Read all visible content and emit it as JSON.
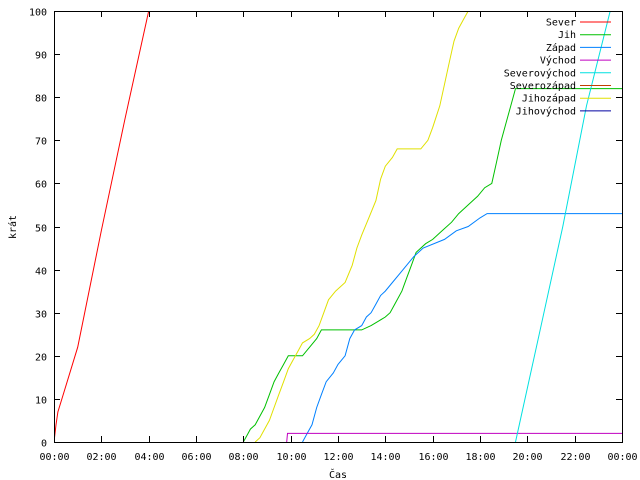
{
  "chart_data": {
    "type": "line",
    "xlabel": "Čas",
    "ylabel": "krát",
    "xlim": [
      "00:00",
      "24:00"
    ],
    "ylim": [
      0,
      100
    ],
    "x_tick_labels": [
      "00:00",
      "02:00",
      "04:00",
      "06:00",
      "08:00",
      "10:00",
      "12:00",
      "14:00",
      "16:00",
      "18:00",
      "20:00",
      "22:00",
      "00:00"
    ],
    "y_tick_labels": [
      "0",
      "10",
      "20",
      "30",
      "40",
      "50",
      "60",
      "70",
      "80",
      "90",
      "100"
    ],
    "legend_position": "top-right",
    "grid": false,
    "series": [
      {
        "name": "Sever",
        "color": "#ff0000",
        "points": [
          [
            "00:00",
            0
          ],
          [
            "00:05",
            4
          ],
          [
            "00:10",
            7
          ],
          [
            "00:20",
            10
          ],
          [
            "01:00",
            22
          ],
          [
            "02:00",
            49
          ],
          [
            "03:00",
            75
          ],
          [
            "04:00",
            100
          ]
        ]
      },
      {
        "name": "Jih",
        "color": "#00c000",
        "points": [
          [
            "08:00",
            0
          ],
          [
            "08:06",
            1
          ],
          [
            "08:12",
            2
          ],
          [
            "08:18",
            3
          ],
          [
            "08:30",
            4
          ],
          [
            "08:42",
            6
          ],
          [
            "08:54",
            8
          ],
          [
            "09:06",
            11
          ],
          [
            "09:18",
            14
          ],
          [
            "09:30",
            16
          ],
          [
            "09:42",
            18
          ],
          [
            "09:54",
            20
          ],
          [
            "10:30",
            20
          ],
          [
            "10:48",
            22
          ],
          [
            "11:06",
            24
          ],
          [
            "11:18",
            26
          ],
          [
            "13:00",
            26
          ],
          [
            "13:24",
            27
          ],
          [
            "13:42",
            28
          ],
          [
            "14:00",
            29
          ],
          [
            "14:12",
            30
          ],
          [
            "14:24",
            32
          ],
          [
            "14:42",
            35
          ],
          [
            "14:54",
            38
          ],
          [
            "15:06",
            41
          ],
          [
            "15:18",
            44
          ],
          [
            "15:42",
            46
          ],
          [
            "16:00",
            47
          ],
          [
            "16:24",
            49
          ],
          [
            "16:48",
            51
          ],
          [
            "17:06",
            53
          ],
          [
            "17:30",
            55
          ],
          [
            "17:54",
            57
          ],
          [
            "18:12",
            59
          ],
          [
            "18:30",
            60
          ],
          [
            "18:42",
            65
          ],
          [
            "18:54",
            70
          ],
          [
            "19:06",
            74
          ],
          [
            "19:18",
            78
          ],
          [
            "19:30",
            82
          ],
          [
            "24:00",
            82
          ]
        ]
      },
      {
        "name": "Západ",
        "color": "#0080ff",
        "points": [
          [
            "10:30",
            0
          ],
          [
            "10:42",
            2
          ],
          [
            "10:54",
            4
          ],
          [
            "11:06",
            8
          ],
          [
            "11:18",
            11
          ],
          [
            "11:30",
            14
          ],
          [
            "11:48",
            16
          ],
          [
            "12:00",
            18
          ],
          [
            "12:18",
            20
          ],
          [
            "12:30",
            24
          ],
          [
            "12:42",
            26
          ],
          [
            "13:00",
            27
          ],
          [
            "13:12",
            29
          ],
          [
            "13:24",
            30
          ],
          [
            "13:36",
            32
          ],
          [
            "13:48",
            34
          ],
          [
            "14:00",
            35
          ],
          [
            "14:18",
            37
          ],
          [
            "14:36",
            39
          ],
          [
            "14:54",
            41
          ],
          [
            "15:12",
            43
          ],
          [
            "15:36",
            45
          ],
          [
            "16:30",
            47
          ],
          [
            "17:00",
            49
          ],
          [
            "17:30",
            50
          ],
          [
            "18:00",
            52
          ],
          [
            "18:18",
            53
          ],
          [
            "24:00",
            53
          ]
        ]
      },
      {
        "name": "Východ",
        "color": "#c000c0",
        "points": [
          [
            "09:50",
            0
          ],
          [
            "09:52",
            2
          ],
          [
            "24:00",
            2
          ]
        ]
      },
      {
        "name": "Severovýchod",
        "color": "#00e0e0",
        "points": [
          [
            "19:30",
            0
          ],
          [
            "20:30",
            25
          ],
          [
            "21:30",
            50
          ],
          [
            "22:30",
            78
          ],
          [
            "23:30",
            100
          ]
        ]
      },
      {
        "name": "Severozápad",
        "color": "#c04000",
        "points": []
      },
      {
        "name": "Jihozápad",
        "color": "#e0e000",
        "points": [
          [
            "08:30",
            0
          ],
          [
            "08:42",
            1
          ],
          [
            "08:54",
            3
          ],
          [
            "09:06",
            5
          ],
          [
            "09:18",
            8
          ],
          [
            "09:30",
            11
          ],
          [
            "09:42",
            14
          ],
          [
            "09:54",
            17
          ],
          [
            "10:06",
            19
          ],
          [
            "10:18",
            21
          ],
          [
            "10:30",
            23
          ],
          [
            "10:48",
            24
          ],
          [
            "11:00",
            25
          ],
          [
            "11:12",
            27
          ],
          [
            "11:24",
            30
          ],
          [
            "11:36",
            33
          ],
          [
            "11:54",
            35
          ],
          [
            "12:18",
            37
          ],
          [
            "12:36",
            41
          ],
          [
            "12:48",
            45
          ],
          [
            "13:00",
            48
          ],
          [
            "13:18",
            52
          ],
          [
            "13:36",
            56
          ],
          [
            "13:48",
            61
          ],
          [
            "14:00",
            64
          ],
          [
            "14:18",
            66
          ],
          [
            "14:30",
            68
          ],
          [
            "15:30",
            68
          ],
          [
            "15:48",
            70
          ],
          [
            "16:00",
            73
          ],
          [
            "16:18",
            78
          ],
          [
            "16:30",
            83
          ],
          [
            "16:42",
            88
          ],
          [
            "16:54",
            93
          ],
          [
            "17:06",
            96
          ],
          [
            "17:18",
            98
          ],
          [
            "17:30",
            100
          ]
        ]
      },
      {
        "name": "Jihovýchod",
        "color": "#0000a0",
        "points": []
      }
    ]
  }
}
